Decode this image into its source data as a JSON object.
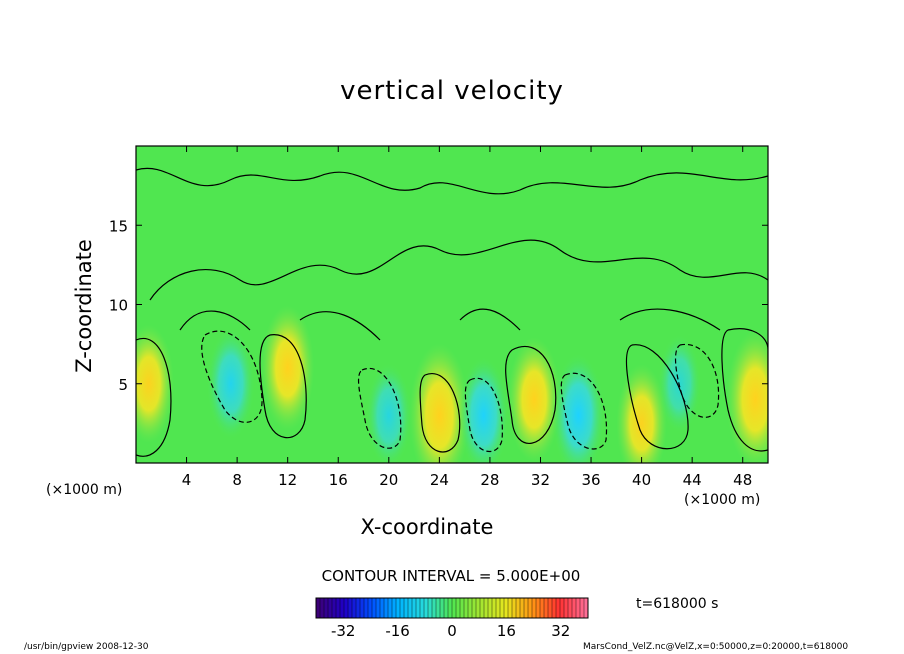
{
  "chart_data": {
    "type": "heatmap",
    "title": "vertical velocity",
    "xlabel": "X-coordinate",
    "ylabel": "Z-coordinate",
    "x_unit": "(×1000 m)",
    "xlim": [
      0,
      50
    ],
    "ylim": [
      0,
      20
    ],
    "x_ticks": [
      4,
      8,
      12,
      16,
      20,
      24,
      28,
      32,
      36,
      40,
      44,
      48
    ],
    "y_ticks": [
      5,
      10,
      15
    ],
    "contour_interval": "CONTOUR INTERVAL = 5.000E+00",
    "time_label": "t=618000 s",
    "colorbar": {
      "ticks": [
        -32,
        -16,
        0,
        16,
        32
      ],
      "range": [
        -40,
        40
      ],
      "colors": [
        "#3c0078",
        "#1e00c8",
        "#0050ff",
        "#00b4ff",
        "#28dcdc",
        "#50e650",
        "#a0e632",
        "#e6e61e",
        "#ff9614",
        "#ff3232",
        "#ff6e96"
      ]
    },
    "cells": [
      {
        "x": 1,
        "z": 5,
        "w": 12
      },
      {
        "x": 7.5,
        "z": 5,
        "w": -10
      },
      {
        "x": 12,
        "z": 6,
        "w": 14
      },
      {
        "x": 20,
        "z": 3,
        "w": -8
      },
      {
        "x": 24,
        "z": 3,
        "w": 20
      },
      {
        "x": 27.5,
        "z": 3,
        "w": -12
      },
      {
        "x": 31.5,
        "z": 4,
        "w": 14
      },
      {
        "x": 35,
        "z": 3,
        "w": -14
      },
      {
        "x": 40,
        "z": 2.5,
        "w": 12
      },
      {
        "x": 43,
        "z": 5,
        "w": -6
      },
      {
        "x": 49,
        "z": 4,
        "w": 18
      }
    ]
  },
  "footer": {
    "command": "/usr/bin/gpview   2008-12-30",
    "source": "MarsCond_VelZ.nc@VelZ,x=0:50000,z=0:20000,t=618000"
  }
}
